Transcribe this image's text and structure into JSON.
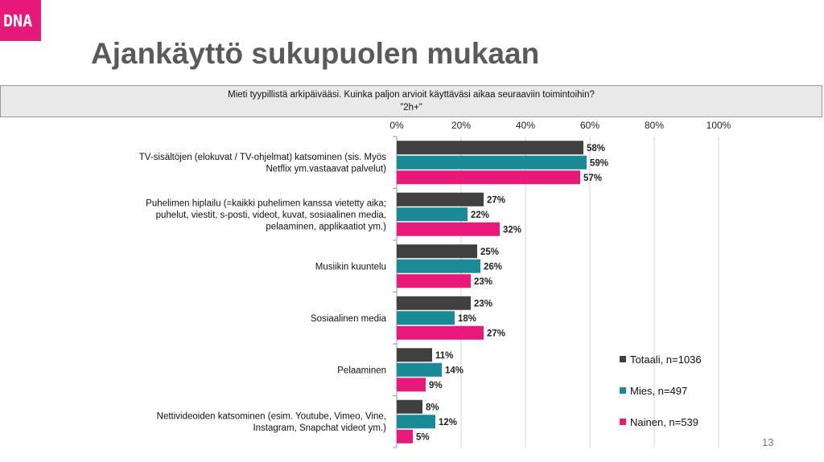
{
  "brand": {
    "logo_text": "DNA",
    "color": "#e5197a"
  },
  "slide": {
    "title": "Ajankäyttö sukupuolen mukaan",
    "page_number": "13"
  },
  "question": {
    "line1": "Mieti tyypillistä arkipäivääsi. Kuinka paljon arvioit käyttäväsi aikaa seuraaviin toimintoihin?",
    "line2": "”2h+”"
  },
  "chart_data": {
    "type": "bar",
    "orientation": "horizontal",
    "xlim": [
      0,
      100
    ],
    "ticks": [
      "0%",
      "20%",
      "40%",
      "60%",
      "80%",
      "100%"
    ],
    "grid": true,
    "legend_position": "bottom-right",
    "categories": [
      [
        "TV-sisältöjen (elokuvat / TV-ohjelmat) katsominen (sis. Myös",
        "Netflix ym.vastaavat palvelut)"
      ],
      [
        "Puhelimen hiplailu (=kaikki puhelimen kanssa vietetty aika;",
        "puhelut, viestit, s-posti, videot, kuvat, sosiaalinen media,",
        "pelaaminen, applikaatiot ym.)"
      ],
      [
        "Musiikin kuuntelu"
      ],
      [
        "Sosiaalinen media"
      ],
      [
        "Pelaaminen"
      ],
      [
        "Nettivideoiden katsominen (esim. Youtube, Vimeo, Vine,",
        "Instagram, Snapchat videot ym.)"
      ]
    ],
    "series": [
      {
        "name": "Totaali, n=1036",
        "color": "#404040",
        "values": [
          58,
          27,
          25,
          23,
          11,
          8
        ]
      },
      {
        "name": "Mies, n=497",
        "color": "#1a8a96",
        "values": [
          59,
          22,
          26,
          18,
          14,
          12
        ]
      },
      {
        "name": "Nainen, n=539",
        "color": "#e8197a",
        "values": [
          57,
          32,
          23,
          27,
          9,
          5
        ]
      }
    ]
  }
}
